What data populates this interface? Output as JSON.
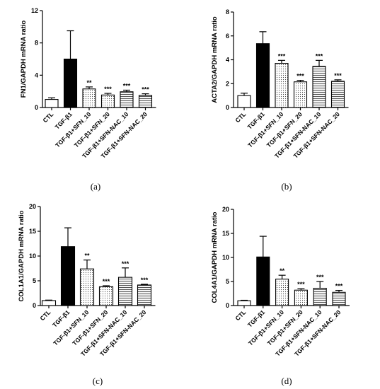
{
  "chart_data": [
    {
      "type": "bar",
      "panel_label": "(a)",
      "ylabel": "FN1/GAPDH mRNA ratio",
      "ylim": [
        0,
        12
      ],
      "yticks": [
        0,
        4,
        8,
        12
      ],
      "grid": false,
      "categories": [
        "CTL",
        "TGF-β1",
        "TGF-β1+SFN_10",
        "TGF-β1+SFN_20",
        "TGF-β1+SFN-NAC_10",
        "TGF-β1+SFN-NAC_20"
      ],
      "values": [
        1.0,
        6.0,
        2.3,
        1.55,
        1.95,
        1.5
      ],
      "errors": [
        0.2,
        3.5,
        0.25,
        0.2,
        0.2,
        0.2
      ],
      "significance": [
        "",
        "",
        "**",
        "***",
        "***",
        "***"
      ],
      "fills": [
        "white",
        "black",
        "dots",
        "dots",
        "hlines",
        "hlines"
      ]
    },
    {
      "type": "bar",
      "panel_label": "(b)",
      "ylabel": "ACTA2/GAPDH mRNA ratio",
      "ylim": [
        0,
        8
      ],
      "yticks": [
        0,
        2,
        4,
        6,
        8
      ],
      "grid": false,
      "categories": [
        "CTL",
        "TGF-β1",
        "TGF-β1+SFN_10",
        "TGF-β1+SFN_20",
        "TGF-β1+SFN-NAC_10",
        "TGF-β1+SFN-NAC_20"
      ],
      "values": [
        1.0,
        5.35,
        3.7,
        2.15,
        3.45,
        2.2
      ],
      "errors": [
        0.2,
        1.0,
        0.25,
        0.12,
        0.5,
        0.12
      ],
      "significance": [
        "",
        "",
        "***",
        "***",
        "***",
        "***"
      ],
      "fills": [
        "white",
        "black",
        "dots",
        "dots",
        "hlines",
        "hlines"
      ]
    },
    {
      "type": "bar",
      "panel_label": "(c)",
      "ylabel": "COL1A1/GAPDH mRNA ratio",
      "ylim": [
        0,
        20
      ],
      "yticks": [
        0,
        5,
        10,
        15,
        20
      ],
      "grid": false,
      "categories": [
        "CTL",
        "TGF-β1",
        "TGF-β1+SFN_10",
        "TGF-β1+SFN_20",
        "TGF-β1+SFN-NAC_10",
        "TGF-β1+SFN-NAC_20"
      ],
      "values": [
        1.0,
        11.9,
        7.4,
        3.8,
        5.7,
        4.15
      ],
      "errors": [
        0.1,
        3.8,
        1.8,
        0.2,
        1.9,
        0.15
      ],
      "significance": [
        "",
        "",
        "**",
        "***",
        "***",
        "***"
      ],
      "fills": [
        "white",
        "black",
        "dots",
        "dots",
        "hlines",
        "hlines"
      ]
    },
    {
      "type": "bar",
      "panel_label": "(d)",
      "ylabel": "COL4A1/GAPDH mRNA ratio",
      "ylim": [
        0,
        20
      ],
      "yticks": [
        0,
        5,
        10,
        15,
        20
      ],
      "grid": false,
      "categories": [
        "CTL",
        "TGF-β1",
        "TGF-β1+SFN_10",
        "TGF-β1+SFN_20",
        "TGF-β1+SFN-NAC_10",
        "TGF-β1+SFN-NAC_20"
      ],
      "values": [
        1.0,
        10.1,
        5.5,
        3.2,
        3.6,
        2.75
      ],
      "errors": [
        0.1,
        4.3,
        0.8,
        0.3,
        1.4,
        0.4
      ],
      "significance": [
        "",
        "",
        "**",
        "***",
        "***",
        "***"
      ],
      "fills": [
        "white",
        "black",
        "dots",
        "dots",
        "hlines",
        "hlines"
      ]
    }
  ]
}
